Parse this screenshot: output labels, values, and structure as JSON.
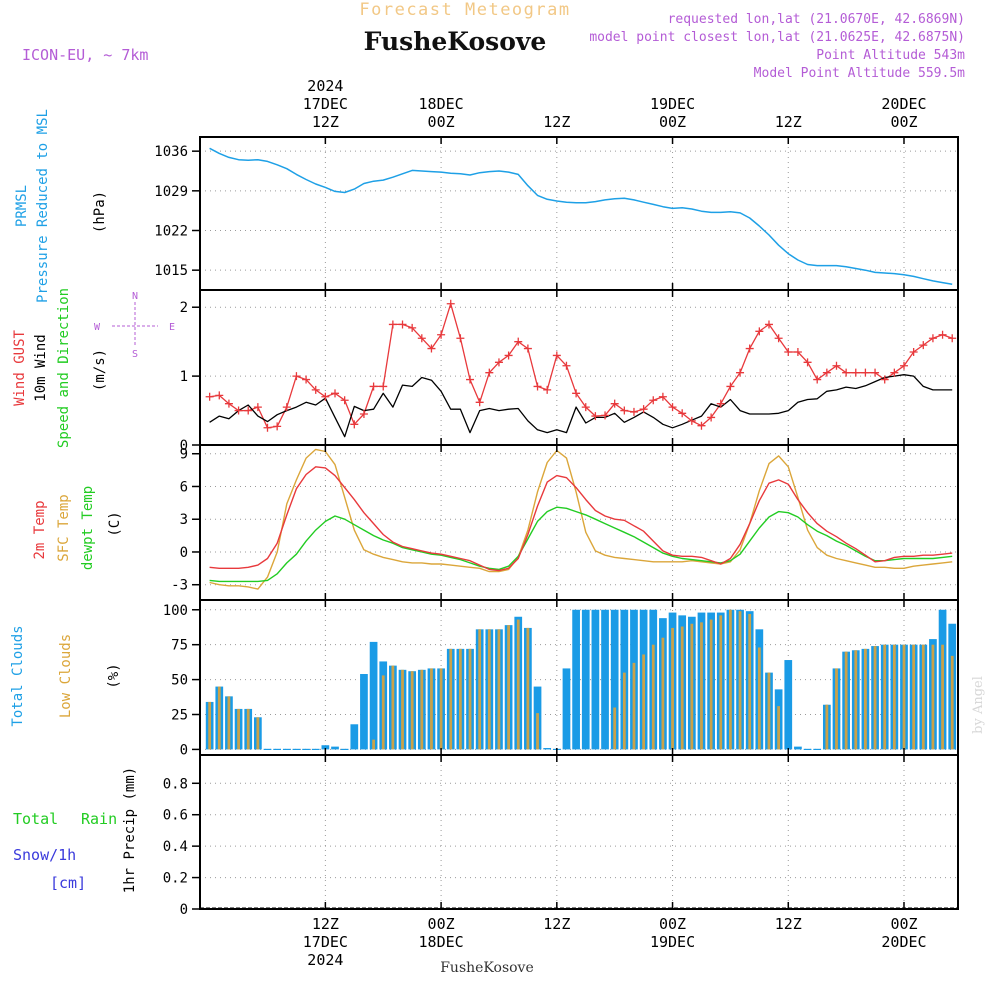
{
  "header": {
    "subtitle": "Forecast Meteogram",
    "location": "FusheKosove",
    "model": "ICON-EU, ~ 7km",
    "requested": "requested lon,lat (21.0670E, 42.6869N)",
    "closest": "model point closest lon,lat (21.0625E, 42.6875N)",
    "altitude": "Point Altitude 543m",
    "model_altitude": "Model Point Altitude 559.5m"
  },
  "time_axis": {
    "top_labels": [
      {
        "h": 12,
        "lines": [
          "2024",
          "17DEC",
          "12Z"
        ]
      },
      {
        "h": 24,
        "lines": [
          "18DEC",
          "00Z"
        ]
      },
      {
        "h": 36,
        "lines": [
          "12Z"
        ]
      },
      {
        "h": 48,
        "lines": [
          "19DEC",
          "00Z"
        ]
      },
      {
        "h": 60,
        "lines": [
          "12Z"
        ]
      },
      {
        "h": 72,
        "lines": [
          "20DEC",
          "00Z"
        ]
      }
    ],
    "bottom_labels": [
      {
        "h": 12,
        "lines": [
          "12Z",
          "17DEC",
          "2024"
        ]
      },
      {
        "h": 24,
        "lines": [
          "00Z",
          "18DEC"
        ]
      },
      {
        "h": 36,
        "lines": [
          "12Z"
        ]
      },
      {
        "h": 48,
        "lines": [
          "00Z",
          "19DEC"
        ]
      },
      {
        "h": 60,
        "lines": [
          "12Z"
        ]
      },
      {
        "h": 72,
        "lines": [
          "00Z",
          "20DEC"
        ]
      }
    ],
    "footer_location": "FusheKosove"
  },
  "panel_labels": {
    "pressure": [
      "PRMSL",
      "Pressure Reduced to MSL",
      "(hPa)"
    ],
    "wind": [
      "Wind GUST",
      "10m Wind",
      "Speed and Direction",
      "(m/s)"
    ],
    "compass": [
      "N",
      "W",
      "E",
      "S"
    ],
    "temp": [
      "2m Temp",
      "SFC Temp",
      "dewpt Temp",
      "(C)"
    ],
    "clouds": [
      "Total Clouds",
      "Low Clouds",
      "(%)"
    ],
    "precip": [
      "Total",
      "Rain",
      "Snow/1h",
      "[cm]",
      "1hr Precip (mm)"
    ],
    "watermark": "by Angel"
  },
  "colors": {
    "pressure": "#1ea0e6",
    "gust": "#e8393c",
    "wind": "#000000",
    "t2m": "#e8393c",
    "sfc": "#dba63a",
    "dew": "#22cc22",
    "total_clouds": "#1a9be6",
    "low_clouds": "#c9a24a",
    "purple": "#b45cd6",
    "precip_total": "#22cc22",
    "precip_snow": "#3a3adc"
  },
  "chart_data": [
    {
      "type": "line",
      "id": "pressure",
      "x_hours": [
        0,
        1,
        2,
        3,
        4,
        5,
        6,
        7,
        8,
        9,
        10,
        11,
        12,
        13,
        14,
        15,
        16,
        17,
        18,
        19,
        20,
        21,
        22,
        23,
        24,
        25,
        26,
        27,
        28,
        29,
        30,
        31,
        32,
        33,
        34,
        35,
        36,
        37,
        38,
        39,
        40,
        41,
        42,
        43,
        44,
        45,
        46,
        47,
        48,
        49,
        50,
        51,
        52,
        53,
        54,
        55,
        56,
        57,
        58,
        59,
        60,
        61,
        62,
        63,
        64,
        65,
        66,
        67,
        68,
        69,
        70,
        71,
        72,
        73,
        74,
        75,
        76,
        77
      ],
      "series": [
        {
          "name": "PRMSL",
          "values": [
            1036.5,
            1035.6,
            1034.9,
            1034.5,
            1034.4,
            1034.5,
            1034.2,
            1033.6,
            1032.9,
            1031.9,
            1031.0,
            1030.2,
            1029.6,
            1028.9,
            1028.7,
            1029.3,
            1030.3,
            1030.7,
            1030.9,
            1031.4,
            1032.0,
            1032.6,
            1032.5,
            1032.4,
            1032.3,
            1032.1,
            1032.0,
            1031.8,
            1032.2,
            1032.4,
            1032.5,
            1032.3,
            1031.9,
            1029.9,
            1028.2,
            1027.5,
            1027.2,
            1027.0,
            1026.9,
            1026.9,
            1027.1,
            1027.4,
            1027.6,
            1027.7,
            1027.4,
            1027.0,
            1026.6,
            1026.2,
            1025.9,
            1026.0,
            1025.8,
            1025.4,
            1025.2,
            1025.2,
            1025.3,
            1025.1,
            1024.2,
            1022.8,
            1021.2,
            1019.4,
            1017.9,
            1016.8,
            1016.0,
            1015.8,
            1015.8,
            1015.8,
            1015.6,
            1015.3,
            1015.0,
            1014.6,
            1014.5,
            1014.4,
            1014.2,
            1013.9,
            1013.5,
            1013.1,
            1012.8,
            1012.5
          ]
        }
      ],
      "ylabel": "(hPa)",
      "yticks": [
        1015,
        1022,
        1029,
        1036
      ],
      "ylim": [
        1011.5,
        1038.5
      ]
    },
    {
      "type": "line",
      "id": "wind",
      "x_hours": [
        0,
        1,
        2,
        3,
        4,
        5,
        6,
        7,
        8,
        9,
        10,
        11,
        12,
        13,
        14,
        15,
        16,
        17,
        18,
        19,
        20,
        21,
        22,
        23,
        24,
        25,
        26,
        27,
        28,
        29,
        30,
        31,
        32,
        33,
        34,
        35,
        36,
        37,
        38,
        39,
        40,
        41,
        42,
        43,
        44,
        45,
        46,
        47,
        48,
        49,
        50,
        51,
        52,
        53,
        54,
        55,
        56,
        57,
        58,
        59,
        60,
        61,
        62,
        63,
        64,
        65,
        66,
        67,
        68,
        69,
        70,
        71,
        72,
        73,
        74,
        75,
        76,
        77
      ],
      "series": [
        {
          "name": "Wind GUST",
          "values": [
            0.7,
            0.72,
            0.6,
            0.5,
            0.5,
            0.55,
            0.25,
            0.27,
            0.55,
            1.0,
            0.95,
            0.8,
            0.7,
            0.75,
            0.65,
            0.3,
            0.45,
            0.85,
            0.85,
            1.75,
            1.75,
            1.7,
            1.55,
            1.4,
            1.6,
            2.05,
            1.55,
            0.95,
            0.62,
            1.05,
            1.2,
            1.3,
            1.5,
            1.4,
            0.85,
            0.8,
            1.3,
            1.15,
            0.75,
            0.55,
            0.42,
            0.43,
            0.6,
            0.5,
            0.48,
            0.52,
            0.65,
            0.7,
            0.55,
            0.46,
            0.35,
            0.28,
            0.4,
            0.6,
            0.85,
            1.05,
            1.4,
            1.65,
            1.75,
            1.55,
            1.35,
            1.35,
            1.2,
            0.95,
            1.05,
            1.15,
            1.05,
            1.05,
            1.05,
            1.05,
            0.95,
            1.05,
            1.15,
            1.35,
            1.45,
            1.55,
            1.6,
            1.55
          ]
        },
        {
          "name": "10m Wind",
          "values": [
            0.33,
            0.42,
            0.38,
            0.5,
            0.58,
            0.42,
            0.34,
            0.44,
            0.5,
            0.55,
            0.62,
            0.58,
            0.68,
            0.4,
            0.12,
            0.56,
            0.5,
            0.52,
            0.75,
            0.55,
            0.87,
            0.85,
            0.98,
            0.94,
            0.78,
            0.52,
            0.52,
            0.18,
            0.5,
            0.53,
            0.5,
            0.52,
            0.53,
            0.35,
            0.22,
            0.18,
            0.22,
            0.18,
            0.55,
            0.32,
            0.4,
            0.4,
            0.46,
            0.33,
            0.4,
            0.48,
            0.4,
            0.3,
            0.25,
            0.3,
            0.36,
            0.42,
            0.6,
            0.55,
            0.66,
            0.5,
            0.45,
            0.45,
            0.45,
            0.46,
            0.5,
            0.62,
            0.66,
            0.67,
            0.78,
            0.8,
            0.84,
            0.82,
            0.86,
            0.92,
            0.98,
            1.0,
            1.02,
            1.0,
            0.85,
            0.8,
            0.8,
            0.8
          ]
        }
      ],
      "ylabel": "(m/s)",
      "yticks": [
        0,
        1,
        2
      ],
      "ylim": [
        0,
        2.25
      ]
    },
    {
      "type": "line",
      "id": "temperature",
      "x_hours": [
        0,
        1,
        2,
        3,
        4,
        5,
        6,
        7,
        8,
        9,
        10,
        11,
        12,
        13,
        14,
        15,
        16,
        17,
        18,
        19,
        20,
        21,
        22,
        23,
        24,
        25,
        26,
        27,
        28,
        29,
        30,
        31,
        32,
        33,
        34,
        35,
        36,
        37,
        38,
        39,
        40,
        41,
        42,
        43,
        44,
        45,
        46,
        47,
        48,
        49,
        50,
        51,
        52,
        53,
        54,
        55,
        56,
        57,
        58,
        59,
        60,
        61,
        62,
        63,
        64,
        65,
        66,
        67,
        68,
        69,
        70,
        71,
        72,
        73,
        74,
        75,
        76,
        77
      ],
      "series": [
        {
          "name": "2m Temp",
          "values": [
            -1.4,
            -1.5,
            -1.5,
            -1.5,
            -1.4,
            -1.2,
            -0.6,
            0.8,
            3.4,
            5.8,
            7.1,
            7.8,
            7.7,
            7.0,
            5.9,
            4.8,
            3.6,
            2.6,
            1.6,
            0.9,
            0.5,
            0.3,
            0.1,
            -0.1,
            -0.2,
            -0.4,
            -0.6,
            -0.8,
            -1.2,
            -1.6,
            -1.7,
            -1.5,
            -0.6,
            1.6,
            4.2,
            6.4,
            7.0,
            6.8,
            5.9,
            4.8,
            3.8,
            3.3,
            3.0,
            2.9,
            2.4,
            1.9,
            1.0,
            0.1,
            -0.3,
            -0.4,
            -0.4,
            -0.5,
            -0.8,
            -1.1,
            -0.6,
            0.7,
            2.6,
            4.7,
            6.3,
            6.6,
            6.2,
            4.8,
            3.6,
            2.6,
            1.9,
            1.4,
            0.8,
            0.3,
            -0.3,
            -0.9,
            -0.8,
            -0.5,
            -0.4,
            -0.4,
            -0.3,
            -0.3,
            -0.2,
            -0.1
          ]
        },
        {
          "name": "SFC Temp",
          "values": [
            -2.8,
            -3.0,
            -3.1,
            -3.1,
            -3.2,
            -3.4,
            -2.3,
            0.0,
            4.4,
            6.6,
            8.6,
            9.4,
            9.2,
            8.0,
            5.0,
            2.0,
            0.2,
            -0.2,
            -0.5,
            -0.7,
            -0.9,
            -1.0,
            -1.0,
            -1.1,
            -1.1,
            -1.2,
            -1.3,
            -1.4,
            -1.5,
            -1.8,
            -1.8,
            -1.6,
            -0.5,
            2.0,
            5.5,
            8.2,
            9.3,
            8.6,
            5.5,
            1.8,
            0.1,
            -0.3,
            -0.5,
            -0.6,
            -0.7,
            -0.8,
            -0.9,
            -0.9,
            -0.9,
            -0.9,
            -0.8,
            -0.9,
            -1.0,
            -1.1,
            -0.9,
            0.2,
            2.6,
            5.6,
            8.1,
            8.8,
            7.8,
            5.0,
            2.0,
            0.4,
            -0.3,
            -0.6,
            -0.8,
            -1.0,
            -1.2,
            -1.4,
            -1.4,
            -1.5,
            -1.5,
            -1.3,
            -1.2,
            -1.1,
            -1.0,
            -0.9
          ]
        },
        {
          "name": "dewpt Temp",
          "values": [
            -2.6,
            -2.7,
            -2.7,
            -2.7,
            -2.7,
            -2.7,
            -2.6,
            -2.0,
            -1.0,
            -0.2,
            1.0,
            2.0,
            2.8,
            3.3,
            3.0,
            2.5,
            2.0,
            1.5,
            1.1,
            0.8,
            0.4,
            0.2,
            0.0,
            -0.2,
            -0.3,
            -0.5,
            -0.7,
            -1.0,
            -1.3,
            -1.5,
            -1.6,
            -1.3,
            -0.4,
            1.2,
            2.8,
            3.7,
            4.1,
            4.0,
            3.7,
            3.4,
            3.0,
            2.6,
            2.2,
            1.8,
            1.4,
            0.9,
            0.4,
            -0.1,
            -0.4,
            -0.6,
            -0.7,
            -0.8,
            -0.9,
            -1.0,
            -0.8,
            -0.2,
            1.0,
            2.2,
            3.2,
            3.7,
            3.6,
            3.2,
            2.5,
            1.9,
            1.5,
            1.0,
            0.6,
            0.1,
            -0.4,
            -0.8,
            -0.8,
            -0.7,
            -0.6,
            -0.6,
            -0.6,
            -0.6,
            -0.5,
            -0.4
          ]
        }
      ],
      "ylabel": "(C)",
      "yticks": [
        -3,
        0,
        3,
        6,
        9
      ],
      "ylim": [
        -4.4,
        9.8
      ]
    },
    {
      "type": "bar",
      "id": "clouds",
      "x_hours": [
        0,
        1,
        2,
        3,
        4,
        5,
        6,
        7,
        8,
        9,
        10,
        11,
        12,
        13,
        14,
        15,
        16,
        17,
        18,
        19,
        20,
        21,
        22,
        23,
        24,
        25,
        26,
        27,
        28,
        29,
        30,
        31,
        32,
        33,
        34,
        35,
        36,
        37,
        38,
        39,
        40,
        41,
        42,
        43,
        44,
        45,
        46,
        47,
        48,
        49,
        50,
        51,
        52,
        53,
        54,
        55,
        56,
        57,
        58,
        59,
        60,
        61,
        62,
        63,
        64,
        65,
        66,
        67,
        68,
        69,
        70,
        71,
        72,
        73,
        74,
        75,
        76,
        77
      ],
      "series": [
        {
          "name": "Total Clouds",
          "values": [
            34,
            45,
            38,
            29,
            29,
            23,
            0,
            0,
            0,
            0,
            0,
            0,
            3,
            2,
            0,
            18,
            54,
            77,
            63,
            60,
            57,
            56,
            57,
            58,
            58,
            72,
            72,
            72,
            86,
            86,
            86,
            89,
            95,
            87,
            45,
            1,
            0,
            58,
            100,
            100,
            100,
            100,
            100,
            100,
            100,
            100,
            100,
            94,
            98,
            96,
            95,
            98,
            98,
            98,
            100,
            100,
            99,
            86,
            55,
            43,
            64,
            2,
            0,
            0,
            32,
            58,
            70,
            71,
            72,
            74,
            75,
            75,
            75,
            75,
            75,
            79,
            100,
            90
          ]
        },
        {
          "name": "Low Clouds",
          "values": [
            34,
            45,
            38,
            29,
            29,
            23,
            0,
            0,
            0,
            0,
            0,
            0,
            0,
            0,
            0,
            0,
            0,
            7,
            53,
            60,
            57,
            56,
            57,
            58,
            58,
            72,
            72,
            72,
            86,
            86,
            86,
            89,
            93,
            87,
            26,
            0,
            0,
            0,
            0,
            0,
            0,
            0,
            30,
            55,
            62,
            68,
            75,
            80,
            87,
            88,
            90,
            91,
            93,
            96,
            100,
            99,
            97,
            73,
            55,
            31,
            0,
            0,
            0,
            0,
            32,
            58,
            70,
            71,
            72,
            74,
            75,
            75,
            75,
            75,
            75,
            75,
            75,
            67
          ]
        }
      ],
      "ylabel": "(%)",
      "yticks": [
        0,
        25,
        50,
        75,
        100
      ],
      "ylim": [
        -4,
        107
      ]
    },
    {
      "type": "bar",
      "id": "precip",
      "x_hours": [],
      "series": [],
      "ylabel": "1hr Precip (mm)",
      "yticks": [
        0,
        0.2,
        0.4,
        0.6,
        0.8
      ],
      "ylim": [
        0,
        0.98
      ]
    }
  ]
}
